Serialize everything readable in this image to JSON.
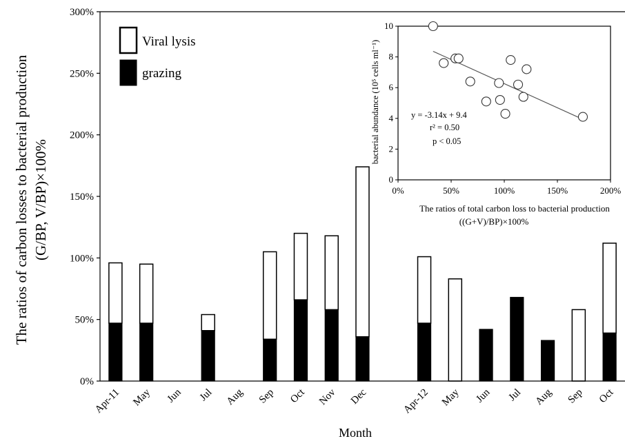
{
  "main_chart": {
    "ylabel_line1": "The ratios of carbon losses to bacterial production",
    "ylabel_line2": "(G/BP, V/BP)×100%",
    "xlabel": "Month",
    "legend": [
      {
        "label": "Viral lysis",
        "fill": "#ffffff"
      },
      {
        "label": "grazing",
        "fill": "#000000"
      }
    ]
  },
  "inset_chart": {
    "ylabel": "bacterial abundance (10⁵ cells ml⁻¹)",
    "xlabel_line1": "The ratios of total carbon loss to bacterial production",
    "xlabel_line2": "((G+V)/BP)×100%",
    "equation": "y = -3.14x + 9.4",
    "r2": "r² = 0.50",
    "p": "p < 0.05"
  },
  "chart_data": [
    {
      "type": "bar",
      "stacked": true,
      "categories": [
        "Apr-11",
        "May",
        "Jun",
        "Jul",
        "Aug",
        "Sep",
        "Oct",
        "Nov",
        "Dec",
        "",
        "Apr-12",
        "May",
        "Jun",
        "Jul",
        "Aug",
        "Sep",
        "Oct"
      ],
      "series": [
        {
          "name": "grazing",
          "color": "#000000",
          "values": [
            47,
            47,
            0,
            41,
            0,
            34,
            66,
            58,
            36,
            null,
            47,
            0,
            42,
            68,
            33,
            0,
            39
          ]
        },
        {
          "name": "Viral lysis",
          "color": "#ffffff",
          "values": [
            49,
            48,
            0,
            13,
            0,
            71,
            54,
            60,
            138,
            null,
            54,
            83,
            0,
            0,
            0,
            58,
            73
          ]
        }
      ],
      "ylim": [
        0,
        300
      ],
      "yticks": [
        "0%",
        "50%",
        "100%",
        "150%",
        "200%",
        "250%",
        "300%"
      ],
      "ylabel": "The ratios of carbon losses to bacterial production (G/BP, V/BP)×100%",
      "xlabel": "Month",
      "legend_position": "top-left",
      "grid": false
    },
    {
      "type": "scatter",
      "x": [
        33,
        43,
        54,
        57,
        68,
        83,
        95,
        96,
        101,
        106,
        113,
        118,
        121,
        174
      ],
      "y": [
        10.0,
        7.6,
        7.9,
        7.9,
        6.4,
        5.1,
        6.3,
        5.2,
        4.3,
        7.8,
        6.2,
        5.4,
        7.2,
        4.1
      ],
      "trendline": {
        "slope": -3.14,
        "intercept": 9.4
      },
      "xlim": [
        0,
        200
      ],
      "ylim": [
        0,
        10
      ],
      "xticks": [
        "0%",
        "50%",
        "100%",
        "150%",
        "200%"
      ],
      "yticks": [
        "0",
        "2",
        "4",
        "6",
        "8",
        "10"
      ],
      "xlabel": "The ratios of total carbon loss to bacterial production ((G+V)/BP)×100%",
      "ylabel": "bacterial abundance (10⁵ cells ml⁻¹)",
      "grid": false
    }
  ]
}
